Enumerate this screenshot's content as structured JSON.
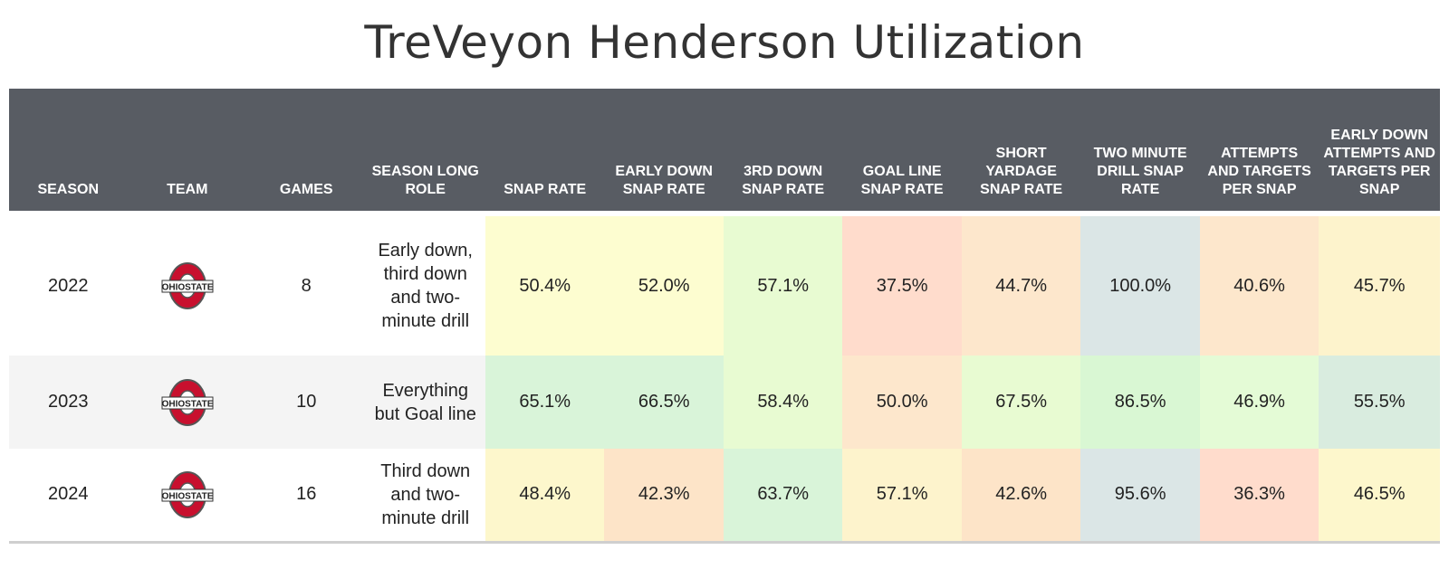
{
  "title": "TreVeyon Henderson Utilization",
  "colors": {
    "header_bg": "#585c63",
    "yellow": "#fdfdd0",
    "green": "#d9f4d9",
    "lime": "#e8fbd2",
    "salmon": "#ffdccc",
    "peach": "#fde7cc",
    "bluegray": "#dbe6e6",
    "tealgreen": "#d9ecdf",
    "ohio_red": "#c8102e"
  },
  "chart_data": {
    "type": "table",
    "title": "TreVeyon Henderson Utilization",
    "columns": [
      "SEASON",
      "TEAM",
      "GAMES",
      "SEASON LONG ROLE",
      "SNAP RATE",
      "EARLY DOWN SNAP RATE",
      "3RD DOWN SNAP RATE",
      "GOAL LINE SNAP RATE",
      "SHORT YARDAGE SNAP RATE",
      "TWO MINUTE DRILL SNAP RATE",
      "ATTEMPTS AND TARGETS PER SNAP",
      "EARLY DOWN ATTEMPTS AND TARGETS PER SNAP"
    ],
    "rows": [
      {
        "season": "2022",
        "team": "OHIO STATE",
        "games": "8",
        "role": "Early down, third down and two-minute drill",
        "metrics": [
          "50.4%",
          "52.0%",
          "57.1%",
          "37.5%",
          "44.7%",
          "100.0%",
          "40.6%",
          "45.7%"
        ],
        "metric_colors": [
          "#fdfdd0",
          "#fdfdd0",
          "#e8fbd2",
          "#ffdccc",
          "#fde7cc",
          "#dbe6e6",
          "#fde7cc",
          "#fdf3cc"
        ]
      },
      {
        "season": "2023",
        "team": "OHIO STATE",
        "games": "10",
        "role": "Everything but Goal line",
        "metrics": [
          "65.1%",
          "66.5%",
          "58.4%",
          "50.0%",
          "67.5%",
          "86.5%",
          "46.9%",
          "55.5%"
        ],
        "metric_colors": [
          "#d9f4d9",
          "#d9f4d9",
          "#e8fbd2",
          "#fde7cc",
          "#e8fbd2",
          "#d9f7d3",
          "#e4fbd6",
          "#d9ecdf"
        ]
      },
      {
        "season": "2024",
        "team": "OHIO STATE",
        "games": "16",
        "role": "Third down and two-minute drill",
        "metrics": [
          "48.4%",
          "42.3%",
          "63.7%",
          "57.1%",
          "42.6%",
          "95.6%",
          "36.3%",
          "46.5%"
        ],
        "metric_colors": [
          "#fdf7cc",
          "#fde4c8",
          "#d9f4d9",
          "#fdf3cc",
          "#fde4c8",
          "#dbe6e6",
          "#ffdccc",
          "#fdf7cc"
        ]
      }
    ]
  }
}
